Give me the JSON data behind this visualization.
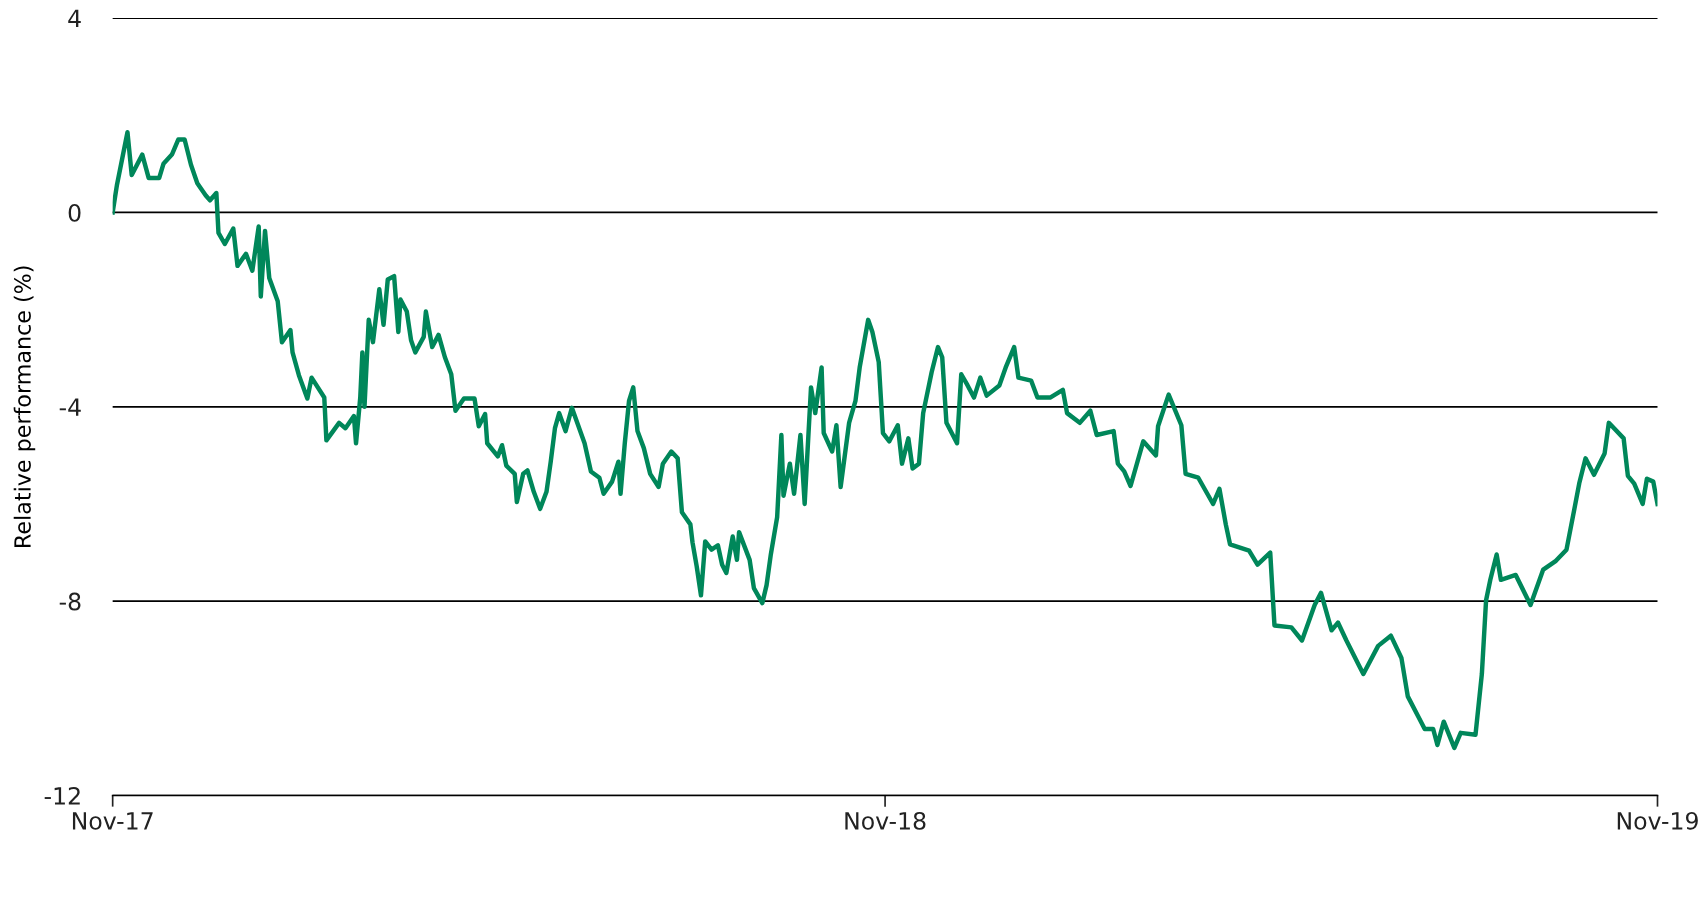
{
  "chart_data": {
    "type": "line",
    "ylabel": "Relative performance (%)",
    "xlim": [
      "2017-11-01",
      "2019-11-01"
    ],
    "xticks": [
      {
        "value": "2017-11-01",
        "label": "Nov-17"
      },
      {
        "value": "2018-11-01",
        "label": "Nov-18"
      },
      {
        "value": "2019-11-01",
        "label": "Nov-19"
      }
    ],
    "ylim": [
      -12,
      4
    ],
    "yticks": [
      -12,
      -8,
      -4,
      0,
      4
    ],
    "grid": "y",
    "legend": false,
    "marker": "none",
    "line_style": "solid",
    "series": [
      {
        "color": "#00875a",
        "x": [
          "2017-11-01",
          "2017-11-03",
          "2017-11-08",
          "2017-11-10",
          "2017-11-15",
          "2017-11-18",
          "2017-11-23",
          "2017-11-25",
          "2017-11-29",
          "2017-12-02",
          "2017-12-05",
          "2017-12-08",
          "2017-12-11",
          "2017-12-15",
          "2017-12-17",
          "2017-12-20",
          "2017-12-21",
          "2017-12-24",
          "2017-12-28",
          "2017-12-30",
          "2018-01-03",
          "2018-01-06",
          "2018-01-09",
          "2018-01-10",
          "2018-01-12",
          "2018-01-14",
          "2018-01-18",
          "2018-01-20",
          "2018-01-24",
          "2018-01-25",
          "2018-01-28",
          "2018-02-01",
          "2018-02-03",
          "2018-02-09",
          "2018-02-10",
          "2018-02-16",
          "2018-02-19",
          "2018-02-23",
          "2018-02-24",
          "2018-02-26",
          "2018-02-27",
          "2018-02-28",
          "2018-03-02",
          "2018-03-04",
          "2018-03-07",
          "2018-03-09",
          "2018-03-11",
          "2018-03-14",
          "2018-03-16",
          "2018-03-17",
          "2018-03-20",
          "2018-03-22",
          "2018-03-24",
          "2018-03-28",
          "2018-03-29",
          "2018-04-01",
          "2018-04-04",
          "2018-04-07",
          "2018-04-10",
          "2018-04-12",
          "2018-04-16",
          "2018-04-21",
          "2018-04-23",
          "2018-04-26",
          "2018-04-27",
          "2018-05-02",
          "2018-05-04",
          "2018-05-06",
          "2018-05-10",
          "2018-05-11",
          "2018-05-14",
          "2018-05-16",
          "2018-05-19",
          "2018-05-22",
          "2018-05-25",
          "2018-05-27",
          "2018-05-29",
          "2018-05-31",
          "2018-06-03",
          "2018-06-06",
          "2018-06-12",
          "2018-06-15",
          "2018-06-19",
          "2018-06-21",
          "2018-06-25",
          "2018-06-28",
          "2018-06-29",
          "2018-07-01",
          "2018-07-03",
          "2018-07-05",
          "2018-07-07",
          "2018-07-10",
          "2018-07-13",
          "2018-07-17",
          "2018-07-19",
          "2018-07-23",
          "2018-07-26",
          "2018-07-28",
          "2018-08-01",
          "2018-08-02",
          "2018-08-04",
          "2018-08-06",
          "2018-08-08",
          "2018-08-11",
          "2018-08-14",
          "2018-08-16",
          "2018-08-18",
          "2018-08-21",
          "2018-08-23",
          "2018-08-24",
          "2018-08-29",
          "2018-08-31",
          "2018-09-04",
          "2018-09-06",
          "2018-09-08",
          "2018-09-11",
          "2018-09-13",
          "2018-09-14",
          "2018-09-17",
          "2018-09-19",
          "2018-09-22",
          "2018-09-24",
          "2018-09-27",
          "2018-09-29",
          "2018-10-02",
          "2018-10-03",
          "2018-10-07",
          "2018-10-09",
          "2018-10-11",
          "2018-10-15",
          "2018-10-18",
          "2018-10-20",
          "2018-10-24",
          "2018-10-26",
          "2018-10-29",
          "2018-10-31",
          "2018-11-03",
          "2018-11-07",
          "2018-11-09",
          "2018-11-12",
          "2018-11-14",
          "2018-11-17",
          "2018-11-19",
          "2018-11-23",
          "2018-11-26",
          "2018-11-28",
          "2018-11-30",
          "2018-12-05",
          "2018-12-07",
          "2018-12-10",
          "2018-12-13",
          "2018-12-16",
          "2018-12-19",
          "2018-12-25",
          "2018-12-28",
          "2019-01-01",
          "2019-01-03",
          "2019-01-09",
          "2019-01-12",
          "2019-01-18",
          "2019-01-24",
          "2019-01-26",
          "2019-02-01",
          "2019-02-06",
          "2019-02-09",
          "2019-02-17",
          "2019-02-19",
          "2019-02-22",
          "2019-02-25",
          "2019-03-03",
          "2019-03-09",
          "2019-03-10",
          "2019-03-15",
          "2019-03-21",
          "2019-03-23",
          "2019-03-29",
          "2019-04-05",
          "2019-04-08",
          "2019-04-11",
          "2019-04-13",
          "2019-04-22",
          "2019-04-26",
          "2019-05-02",
          "2019-05-04",
          "2019-05-12",
          "2019-05-17",
          "2019-05-23",
          "2019-05-26",
          "2019-05-31",
          "2019-06-03",
          "2019-06-07",
          "2019-06-13",
          "2019-06-15",
          "2019-06-22",
          "2019-06-28",
          "2019-07-03",
          "2019-07-06",
          "2019-07-11",
          "2019-07-14",
          "2019-07-18",
          "2019-07-20",
          "2019-07-23",
          "2019-07-28",
          "2019-07-31",
          "2019-08-07",
          "2019-08-10",
          "2019-08-12",
          "2019-08-14",
          "2019-08-17",
          "2019-08-19",
          "2019-08-26",
          "2019-09-02",
          "2019-09-08",
          "2019-09-14",
          "2019-09-19",
          "2019-09-23",
          "2019-09-25",
          "2019-09-28",
          "2019-10-02",
          "2019-10-07",
          "2019-10-09",
          "2019-10-16",
          "2019-10-18",
          "2019-10-21",
          "2019-10-25",
          "2019-10-27",
          "2019-10-30",
          "2019-11-01"
        ],
        "values": [
          0,
          0.56,
          1.65,
          0.77,
          1.19,
          0.71,
          0.71,
          1.0,
          1.19,
          1.5,
          1.5,
          0.98,
          0.6,
          0.35,
          0.25,
          0.4,
          -0.42,
          -0.65,
          -0.33,
          -1.1,
          -0.85,
          -1.2,
          -0.29,
          -1.73,
          -0.38,
          -1.35,
          -1.83,
          -2.67,
          -2.42,
          -2.88,
          -3.35,
          -3.83,
          -3.4,
          -3.81,
          -4.69,
          -4.33,
          -4.44,
          -4.19,
          -4.75,
          -3.81,
          -2.88,
          -4.0,
          -2.21,
          -2.67,
          -1.58,
          -2.31,
          -1.38,
          -1.31,
          -2.46,
          -1.79,
          -2.04,
          -2.63,
          -2.88,
          -2.56,
          -2.04,
          -2.77,
          -2.52,
          -2.98,
          -3.33,
          -4.08,
          -3.83,
          -3.83,
          -4.4,
          -4.15,
          -4.75,
          -5.02,
          -4.79,
          -5.21,
          -5.38,
          -5.96,
          -5.38,
          -5.31,
          -5.75,
          -6.1,
          -5.75,
          -5.13,
          -4.44,
          -4.13,
          -4.5,
          -4.02,
          -4.75,
          -5.33,
          -5.46,
          -5.79,
          -5.54,
          -5.13,
          -5.79,
          -4.75,
          -3.88,
          -3.6,
          -4.5,
          -4.85,
          -5.38,
          -5.65,
          -5.17,
          -4.92,
          -5.06,
          -6.17,
          -6.42,
          -6.79,
          -7.29,
          -7.88,
          -6.77,
          -6.94,
          -6.85,
          -7.25,
          -7.42,
          -6.67,
          -7.15,
          -6.58,
          -7.15,
          -7.73,
          -8.04,
          -7.67,
          -7.04,
          -6.27,
          -4.58,
          -5.83,
          -5.17,
          -5.79,
          -4.58,
          -6.0,
          -3.6,
          -4.13,
          -3.19,
          -4.54,
          -4.92,
          -4.38,
          -5.65,
          -4.33,
          -3.88,
          -3.19,
          -2.21,
          -2.46,
          -3.08,
          -4.54,
          -4.71,
          -4.38,
          -5.17,
          -4.65,
          -5.27,
          -5.17,
          -4.13,
          -3.29,
          -2.77,
          -2.98,
          -4.33,
          -4.75,
          -3.33,
          -3.56,
          -3.81,
          -3.4,
          -3.77,
          -3.56,
          -3.19,
          -2.77,
          -3.4,
          -3.46,
          -3.81,
          -3.81,
          -3.65,
          -4.13,
          -4.33,
          -4.08,
          -4.58,
          -4.5,
          -5.17,
          -5.33,
          -5.63,
          -4.71,
          -5.0,
          -4.4,
          -3.75,
          -4.38,
          -5.38,
          -5.46,
          -6.0,
          -5.69,
          -6.42,
          -6.83,
          -6.96,
          -7.25,
          -7.0,
          -8.5,
          -8.54,
          -8.81,
          -8.08,
          -7.83,
          -8.6,
          -8.44,
          -8.81,
          -9.33,
          -9.5,
          -8.92,
          -8.71,
          -9.17,
          -9.96,
          -10.38,
          -10.63,
          -10.63,
          -10.96,
          -10.48,
          -11.02,
          -10.71,
          -10.75,
          -9.5,
          -7.98,
          -7.56,
          -7.04,
          -7.56,
          -7.46,
          -8.08,
          -7.35,
          -7.17,
          -6.94,
          -6.04,
          -5.58,
          -5.06,
          -5.4,
          -4.96,
          -4.33,
          -4.65,
          -5.42,
          -5.58,
          -6.0,
          -5.48,
          -5.54,
          -6.0
        ]
      }
    ]
  }
}
